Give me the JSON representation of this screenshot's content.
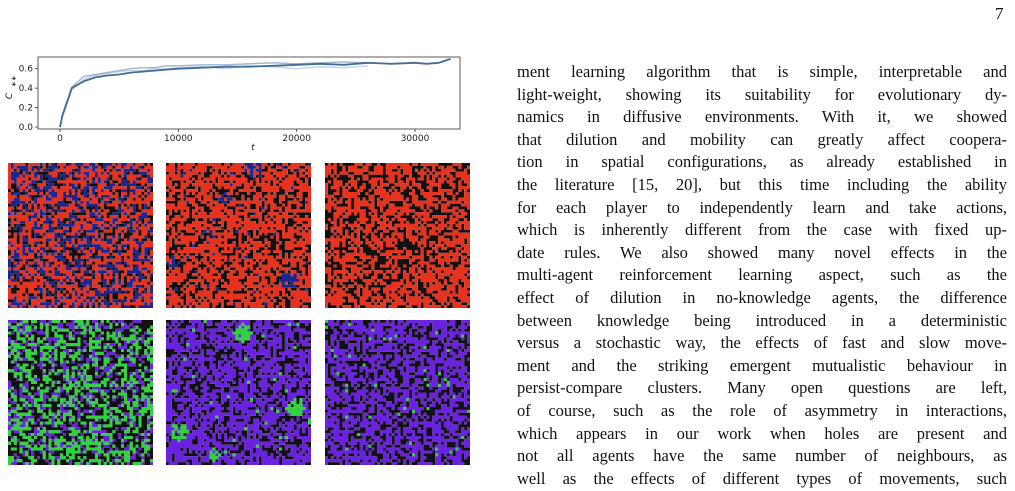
{
  "page_number": "7",
  "figure": {
    "chart_data": {
      "type": "line",
      "x_label": "t",
      "y_label": "C",
      "y_label_sub": "∗∗",
      "x": [
        0,
        200,
        1000,
        2000,
        3000,
        4000,
        5000,
        6000,
        7000,
        8000,
        9000,
        10000,
        12000,
        14000,
        16000,
        18000,
        20000,
        22000,
        24000,
        26000,
        28000,
        30000,
        31000,
        32000,
        33000
      ],
      "series": [
        {
          "color": "#c5d3e3",
          "values": [
            0,
            0.1,
            0.38,
            0.49,
            0.53,
            0.55,
            0.57,
            0.58,
            0.58,
            0.6,
            0.6,
            0.61,
            0.62,
            0.6,
            0.63,
            0.62,
            0.6,
            0.62,
            0.61,
            0.63,
            null,
            null,
            null,
            null,
            null
          ]
        },
        {
          "color": "#9fb6d0",
          "values": [
            0,
            0.11,
            0.41,
            0.52,
            0.54,
            0.56,
            0.58,
            0.6,
            0.61,
            0.61,
            0.63,
            0.63,
            0.64,
            0.64,
            0.65,
            0.66,
            0.65,
            0.66,
            0.67,
            0.66,
            null,
            null,
            null,
            null,
            null
          ]
        },
        {
          "color": "#426d97",
          "values": [
            0,
            0.12,
            0.4,
            0.47,
            0.51,
            0.53,
            0.54,
            0.56,
            0.57,
            0.58,
            0.59,
            0.6,
            0.61,
            0.62,
            0.62,
            0.63,
            0.64,
            0.65,
            0.64,
            0.66,
            0.65,
            0.66,
            0.65,
            0.66,
            0.7
          ]
        }
      ],
      "xlim": [
        -1860,
        33800
      ],
      "ylim": [
        -0.02,
        0.72
      ],
      "xticks": [
        0,
        10000,
        20000,
        30000
      ],
      "yticks": [
        {
          "value": 0,
          "label": "0.0"
        },
        0.2,
        0.4,
        0.6
      ]
    }
  },
  "paragraph": {
    "lines": [
      "ment learning algorithm that is simple, interpretable and",
      "light-weight, showing its suitability for evolutionary dy-",
      "namics in diffusive environments. With it, we showed",
      "that dilution and mobility can greatly affect coopera-",
      "tion in spatial configurations, as already established in",
      "the literature [15, 20], but this time including the ability",
      "for each player to independently learn and take actions,",
      "which is inherently different from the case with fixed up-",
      "date rules. We also showed many novel effects in the",
      "multi-agent reinforcement learning aspect, such as the",
      "effect of dilution in no-knowledge agents, the difference",
      "between knowledge being introduced in a deterministic",
      "versus a stochastic way, the effects of fast and slow move-",
      "ment and the striking emergent mutualistic behaviour in",
      "persist-compare clusters. Many open questions are left,",
      "of course, such as the role of asymmetry in interactions,",
      "which appears in our work when holes are present and",
      "not all agents have the same number of neighbours, as",
      "well as the effects of different types of movements, such"
    ]
  }
}
